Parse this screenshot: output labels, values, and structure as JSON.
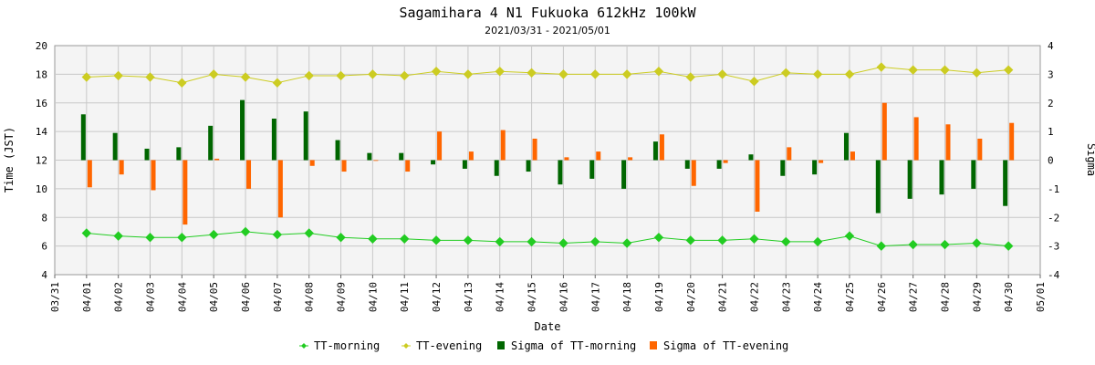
{
  "chart_data": {
    "type": "line",
    "title": "Sagamihara 4 N1 Fukuoka 612kHz 100kW",
    "subtitle": "2021/03/31 - 2021/05/01",
    "xlabel": "Date",
    "ylabel": "Time (JST)",
    "y2label": "Sigma",
    "ylim": [
      4,
      20
    ],
    "y_ticks": [
      "4",
      "6",
      "8",
      "10",
      "12",
      "14",
      "16",
      "18",
      "20"
    ],
    "y2lim": [
      -4,
      4
    ],
    "y2_ticks": [
      "-4",
      "-3",
      "-2",
      "-1",
      "0",
      "1",
      "2",
      "3",
      "4"
    ],
    "categories": [
      "03/31",
      "04/01",
      "04/02",
      "04/03",
      "04/04",
      "04/05",
      "04/06",
      "04/07",
      "04/08",
      "04/09",
      "04/10",
      "04/11",
      "04/12",
      "04/13",
      "04/14",
      "04/15",
      "04/16",
      "04/17",
      "04/18",
      "04/19",
      "04/20",
      "04/21",
      "04/22",
      "04/23",
      "04/24",
      "04/25",
      "04/26",
      "04/27",
      "04/28",
      "04/29",
      "04/30",
      "05/01"
    ],
    "grid": true,
    "legend_position": "bottom",
    "series": [
      {
        "name": "TT-morning",
        "kind": "line",
        "axis": "left",
        "color": "#22cc22",
        "values": [
          null,
          6.9,
          6.7,
          6.6,
          6.6,
          6.8,
          7.0,
          6.8,
          6.9,
          6.6,
          6.5,
          6.5,
          6.4,
          6.4,
          6.3,
          6.3,
          6.2,
          6.3,
          6.2,
          6.6,
          6.4,
          6.4,
          6.5,
          6.3,
          6.3,
          6.7,
          6.0,
          6.1,
          6.1,
          6.2,
          6.0,
          null
        ]
      },
      {
        "name": "TT-evening",
        "kind": "line",
        "axis": "left",
        "color": "#cccc22",
        "values": [
          null,
          17.8,
          17.9,
          17.8,
          17.4,
          18.0,
          17.8,
          17.4,
          17.9,
          17.9,
          18.0,
          17.9,
          18.2,
          18.0,
          18.2,
          18.1,
          18.0,
          18.0,
          18.0,
          18.2,
          17.8,
          18.0,
          17.5,
          18.1,
          18.0,
          18.0,
          18.5,
          18.3,
          18.3,
          18.1,
          18.3,
          null
        ]
      },
      {
        "name": "Sigma of TT-morning",
        "kind": "bar",
        "axis": "right",
        "color": "#006600",
        "values": [
          null,
          1.6,
          0.95,
          0.4,
          0.45,
          1.2,
          2.1,
          1.45,
          1.7,
          0.7,
          0.25,
          0.25,
          -0.15,
          -0.3,
          -0.55,
          -0.4,
          -0.85,
          -0.65,
          -1.0,
          0.65,
          -0.3,
          -0.3,
          0.2,
          -0.55,
          -0.5,
          0.95,
          -1.85,
          -1.35,
          -1.2,
          -1.0,
          -1.6,
          null
        ]
      },
      {
        "name": "Sigma of TT-evening",
        "kind": "bar",
        "axis": "right",
        "color": "#ff6600",
        "values": [
          null,
          -0.95,
          -0.5,
          -1.05,
          -2.25,
          0.05,
          -1.0,
          -2.0,
          -0.2,
          -0.4,
          0.0,
          -0.4,
          1.0,
          0.3,
          1.05,
          0.75,
          0.1,
          0.3,
          0.1,
          0.9,
          -0.9,
          -0.1,
          -1.8,
          0.45,
          -0.1,
          0.3,
          2.0,
          1.5,
          1.25,
          0.75,
          1.3,
          null
        ]
      }
    ]
  }
}
